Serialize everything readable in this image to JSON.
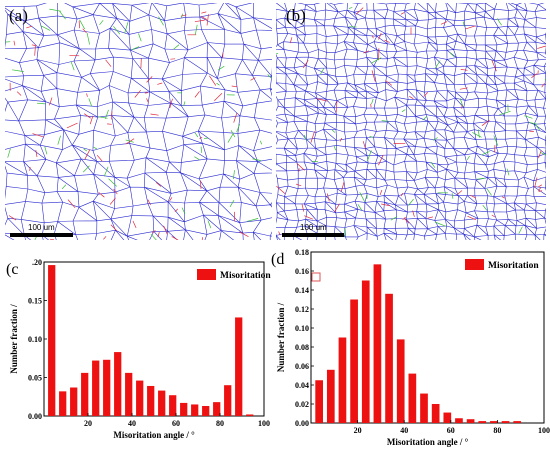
{
  "panels": [
    {
      "label": "(a)",
      "scalebar_label": "100 um"
    },
    {
      "label": "(b)",
      "scalebar_label": "100 um"
    }
  ],
  "colors": {
    "bar": "#ee1111",
    "grain_boundary": "#2a2ad0",
    "twin_boundary": "#e0283a",
    "low_angle": "#33bb33",
    "tick_mark": "#dd5555"
  },
  "chart_data": [
    {
      "type": "bar",
      "panel_label": "(c",
      "legend": "Misoritation",
      "xlabel": "Misoritation angle / °",
      "ylabel": "Number fraction /",
      "xlim": [
        0,
        100
      ],
      "ylim": [
        0,
        0.2
      ],
      "xticks": [
        "20",
        "40",
        "60",
        "80",
        "100"
      ],
      "yticks": [
        "0.00",
        "0.05",
        "0.10",
        "0.15",
        ".20"
      ],
      "x": [
        3.5,
        8.5,
        13.5,
        18.5,
        23.5,
        28.5,
        33.5,
        38.5,
        43.5,
        48.5,
        53.5,
        58.5,
        63.5,
        68.5,
        73.5,
        78.5,
        83.5,
        88.5,
        93.5
      ],
      "values": [
        0.196,
        0.032,
        0.037,
        0.056,
        0.072,
        0.073,
        0.083,
        0.056,
        0.046,
        0.039,
        0.033,
        0.027,
        0.017,
        0.015,
        0.013,
        0.018,
        0.04,
        0.128,
        0.002
      ]
    },
    {
      "type": "bar",
      "panel_label": "(d",
      "legend": "Misoritation",
      "xlabel": "Misoritation angle / °",
      "ylabel": "Number fraction /",
      "xlim": [
        0,
        100
      ],
      "ylim": [
        0,
        0.18
      ],
      "xticks": [
        "20",
        "40",
        "60",
        "80",
        "100"
      ],
      "yticks": [
        "0.00",
        "0.02",
        "0.04",
        "0.06",
        "0.08",
        "0.10",
        "0.12",
        "0.14",
        "0.16",
        "0.18"
      ],
      "x": [
        3.5,
        8.5,
        13.5,
        18.5,
        23.5,
        28.5,
        33.5,
        38.5,
        43.5,
        48.5,
        53.5,
        58.5,
        63.5,
        68.5,
        73.5,
        78.5,
        83.5,
        88.5
      ],
      "values": [
        0.045,
        0.056,
        0.09,
        0.13,
        0.15,
        0.167,
        0.136,
        0.088,
        0.052,
        0.031,
        0.02,
        0.011,
        0.005,
        0.004,
        0.002,
        0.002,
        0.002,
        0.002
      ]
    }
  ]
}
